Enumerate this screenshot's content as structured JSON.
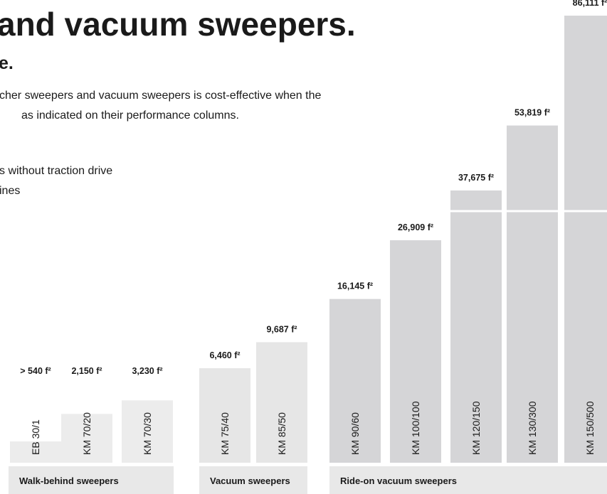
{
  "chart_data": {
    "type": "bar",
    "title": "and vacuum sweepers.",
    "subtitle": "e.",
    "text": [
      "cher sweepers and vacuum sweepers is cost-effective when the",
      "as indicated on their performance columns."
    ],
    "legend_text": [
      "s without traction drive",
      "ines"
    ],
    "series": [
      {
        "name": "Walk-behind sweepers",
        "color": "#ececec",
        "categories": [
          "EB 30/1",
          "KM 70/20",
          "KM 70/30"
        ],
        "values": [
          540,
          2150,
          3230
        ],
        "value_labels": [
          "> 540 f²",
          "2,150 f²",
          "3,230 f²"
        ]
      },
      {
        "name": "Vacuum sweepers",
        "color": "#e6e6e6",
        "categories": [
          "KM 75/40",
          "KM 85/50"
        ],
        "values": [
          6460,
          9687
        ],
        "value_labels": [
          "6,460 f²",
          "9,687 f²"
        ]
      },
      {
        "name": "Ride-on vacuum sweepers",
        "color": "#d5d5d7",
        "categories": [
          "KM 90/60",
          "KM 100/100",
          "KM 120/150",
          "KM 130/300",
          "KM 150/500"
        ],
        "values": [
          16145,
          26909,
          37675,
          53819,
          86111
        ],
        "value_labels": [
          "16,145 f²",
          "26,909 f²",
          "37,675 f²",
          "53,819 f²",
          "86,111 f²"
        ]
      }
    ]
  }
}
